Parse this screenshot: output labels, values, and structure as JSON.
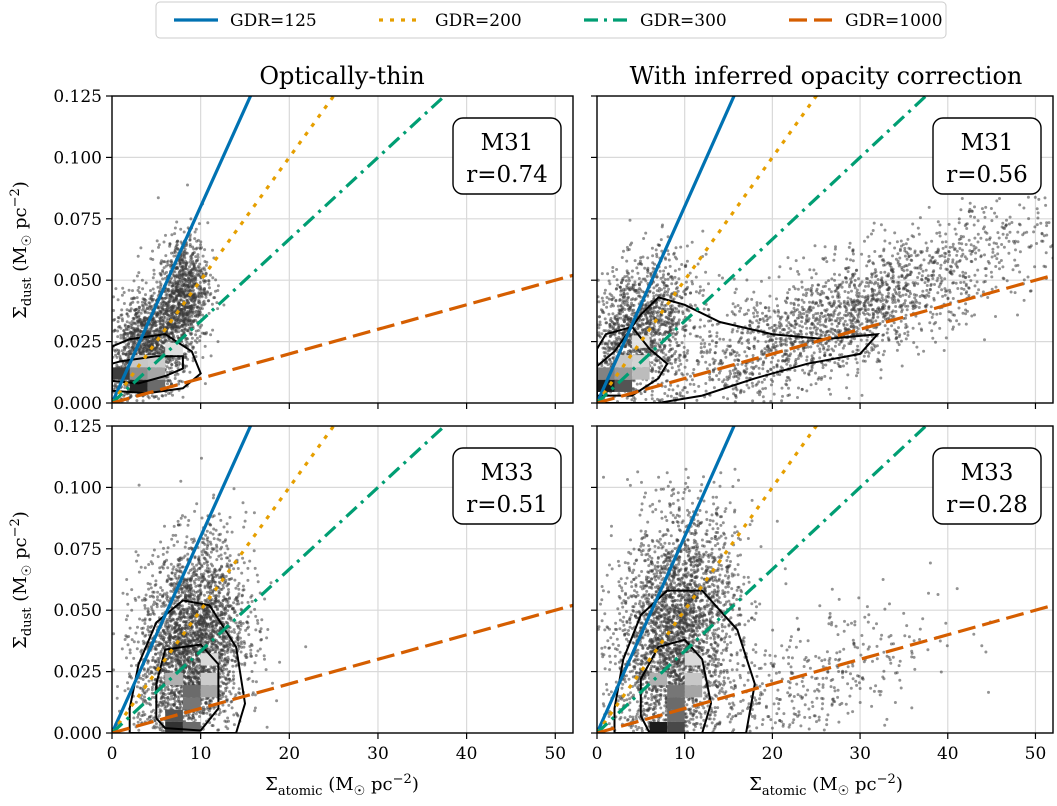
{
  "legend": [
    {
      "label": "GDR=125",
      "gdr": 125,
      "color": "#0072b2",
      "dash": "solid"
    },
    {
      "label": "GDR=200",
      "gdr": 200,
      "color": "#e69f00",
      "dash": "dotted"
    },
    {
      "label": "GDR=300",
      "gdr": 300,
      "color": "#009e73",
      "dash": "dashdot"
    },
    {
      "label": "GDR=1000",
      "gdr": 1000,
      "color": "#d55e00",
      "dash": "dashed"
    }
  ],
  "columns": [
    {
      "title": "Optically-thin"
    },
    {
      "title": "With inferred opacity correction"
    }
  ],
  "chart_data": {
    "type": "scatter",
    "title": "",
    "xlabel_base": "Σ",
    "xlabel_sub": "atomic",
    "xlabel_unit_pre": " (M",
    "xlabel_unit_sun": "☉",
    "xlabel_unit_post": " pc",
    "xlabel_unit_sup": "−2",
    "xlabel_close": ")",
    "ylabel_base": "Σ",
    "ylabel_sub": "dust",
    "ylabel_unit_pre": " (M",
    "ylabel_unit_sun": "☉",
    "ylabel_unit_post": " pc",
    "ylabel_unit_sup": "−2",
    "ylabel_close": ")",
    "xlim": [
      0,
      52
    ],
    "ylim": [
      0,
      0.125
    ],
    "xticks": [
      "0",
      "10",
      "20",
      "30",
      "40",
      "50"
    ],
    "xtick_values": [
      0,
      10,
      20,
      30,
      40,
      50
    ],
    "yticks": [
      "0.000",
      "0.025",
      "0.050",
      "0.075",
      "0.100",
      "0.125"
    ],
    "ytick_values": [
      0,
      0.025,
      0.05,
      0.075,
      0.1,
      0.125
    ],
    "grid": true,
    "legend_position": "top-center",
    "reference_lines": "y = x / GDR",
    "panels": [
      {
        "galaxy": "M31",
        "r_label": "r=0.74",
        "correction": "Optically-thin",
        "cloud": [
          {
            "x": 4,
            "y": 0.022,
            "sx": 2.4,
            "sy": 0.012,
            "n": 1500
          },
          {
            "x": 8,
            "y": 0.045,
            "sx": 1.4,
            "sy": 0.012,
            "n": 900
          }
        ],
        "heat": [
          {
            "x": 3,
            "y": 0.007,
            "v": 0.9
          },
          {
            "x": 5,
            "y": 0.007,
            "v": 0.6
          },
          {
            "x": 1,
            "y": 0.012,
            "v": 0.8
          },
          {
            "x": 3,
            "y": 0.012,
            "v": 0.45
          },
          {
            "x": 5,
            "y": 0.012,
            "v": 0.35
          },
          {
            "x": 3,
            "y": 0.017,
            "v": 0.2
          },
          {
            "x": 5,
            "y": 0.017,
            "v": 0.18
          },
          {
            "x": 7,
            "y": 0.022,
            "v": 0.1
          }
        ],
        "contours": [
          [
            [
              0,
              0.009
            ],
            [
              3,
              0.008
            ],
            [
              6,
              0.011
            ],
            [
              8,
              0.014
            ],
            [
              8,
              0.019
            ],
            [
              5,
              0.019
            ],
            [
              1,
              0.017
            ],
            [
              0,
              0.016
            ]
          ],
          [
            [
              0,
              0.005
            ],
            [
              4,
              0.004
            ],
            [
              8,
              0.006
            ],
            [
              10,
              0.012
            ],
            [
              9,
              0.021
            ],
            [
              6,
              0.028
            ],
            [
              2,
              0.026
            ],
            [
              0,
              0.023
            ]
          ]
        ]
      },
      {
        "galaxy": "M31",
        "r_label": "r=0.56",
        "correction": "With inferred opacity correction",
        "cloud": [
          {
            "x": 5,
            "y": 0.03,
            "sx": 3,
            "sy": 0.014,
            "n": 1400
          },
          {
            "x": 28,
            "y": 0.035,
            "sx": 11,
            "sy": 0.012,
            "n": 2100
          }
        ],
        "heat": [
          {
            "x": 1,
            "y": 0.007,
            "v": 0.95
          },
          {
            "x": 3,
            "y": 0.007,
            "v": 0.7
          },
          {
            "x": 1,
            "y": 0.012,
            "v": 0.5
          },
          {
            "x": 3,
            "y": 0.012,
            "v": 0.4
          },
          {
            "x": 5,
            "y": 0.012,
            "v": 0.25
          },
          {
            "x": 3,
            "y": 0.017,
            "v": 0.2
          },
          {
            "x": 5,
            "y": 0.017,
            "v": 0.15
          },
          {
            "x": 5,
            "y": 0.025,
            "v": 0.08
          }
        ],
        "contours": [
          [
            [
              0,
              0.003
            ],
            [
              4,
              0.003
            ],
            [
              7,
              0.01
            ],
            [
              8,
              0.016
            ],
            [
              6,
              0.022
            ],
            [
              4,
              0.031
            ],
            [
              1,
              0.028
            ],
            [
              0,
              0.022
            ]
          ],
          [
            [
              0,
              0.015
            ],
            [
              2,
              0.021
            ],
            [
              5,
              0.036
            ],
            [
              7,
              0.043
            ],
            [
              10,
              0.04
            ],
            [
              14,
              0.033
            ],
            [
              20,
              0.028
            ],
            [
              26,
              0.026
            ],
            [
              32,
              0.028
            ],
            [
              30,
              0.02
            ],
            [
              24,
              0.016
            ],
            [
              18,
              0.01
            ],
            [
              12,
              0.003
            ],
            [
              7,
              0.0
            ],
            [
              0,
              0.0
            ]
          ]
        ]
      },
      {
        "galaxy": "M33",
        "r_label": "r=0.51",
        "correction": "Optically-thin",
        "cloud": [
          {
            "x": 9,
            "y": 0.035,
            "sx": 3,
            "sy": 0.021,
            "n": 3000
          }
        ],
        "heat": [
          {
            "x": 7,
            "y": 0.002,
            "v": 0.85
          },
          {
            "x": 9,
            "y": 0.002,
            "v": 0.6
          },
          {
            "x": 7,
            "y": 0.007,
            "v": 0.7
          },
          {
            "x": 9,
            "y": 0.012,
            "v": 0.55
          },
          {
            "x": 9,
            "y": 0.017,
            "v": 0.6
          },
          {
            "x": 11,
            "y": 0.017,
            "v": 0.35
          },
          {
            "x": 7,
            "y": 0.022,
            "v": 0.3
          },
          {
            "x": 11,
            "y": 0.022,
            "v": 0.18
          },
          {
            "x": 11,
            "y": 0.03,
            "v": 0.12
          }
        ],
        "contours": [
          [
            [
              6,
              0.002
            ],
            [
              10,
              0.001
            ],
            [
              12,
              0.01
            ],
            [
              12,
              0.028
            ],
            [
              10,
              0.036
            ],
            [
              6,
              0.034
            ],
            [
              5,
              0.02
            ],
            [
              5,
              0.006
            ]
          ],
          [
            [
              2,
              0.0
            ],
            [
              14,
              0.0
            ],
            [
              15,
              0.012
            ],
            [
              14,
              0.035
            ],
            [
              11,
              0.052
            ],
            [
              8,
              0.054
            ],
            [
              5,
              0.045
            ],
            [
              3,
              0.028
            ],
            [
              2,
              0.01
            ]
          ]
        ]
      },
      {
        "galaxy": "M33",
        "r_label": "r=0.28",
        "correction": "With inferred opacity correction",
        "cloud": [
          {
            "x": 9,
            "y": 0.04,
            "sx": 3.5,
            "sy": 0.024,
            "n": 3000
          },
          {
            "x": 22,
            "y": 0.015,
            "sx": 8,
            "sy": 0.015,
            "n": 500
          }
        ],
        "heat": [
          {
            "x": 7,
            "y": 0.002,
            "v": 0.95
          },
          {
            "x": 9,
            "y": 0.002,
            "v": 0.75
          },
          {
            "x": 9,
            "y": 0.007,
            "v": 0.6
          },
          {
            "x": 9,
            "y": 0.012,
            "v": 0.6
          },
          {
            "x": 9,
            "y": 0.017,
            "v": 0.55
          },
          {
            "x": 11,
            "y": 0.017,
            "v": 0.35
          },
          {
            "x": 7,
            "y": 0.022,
            "v": 0.3
          },
          {
            "x": 11,
            "y": 0.022,
            "v": 0.2
          },
          {
            "x": 11,
            "y": 0.03,
            "v": 0.12
          }
        ],
        "contours": [
          [
            [
              6,
              0.0
            ],
            [
              12,
              0.0
            ],
            [
              13,
              0.012
            ],
            [
              12,
              0.03
            ],
            [
              10,
              0.038
            ],
            [
              7,
              0.035
            ],
            [
              5,
              0.022
            ],
            [
              5,
              0.007
            ]
          ],
          [
            [
              2,
              0.0
            ],
            [
              17,
              0.0
            ],
            [
              18,
              0.02
            ],
            [
              16,
              0.042
            ],
            [
              12,
              0.058
            ],
            [
              8,
              0.058
            ],
            [
              5,
              0.048
            ],
            [
              3,
              0.03
            ],
            [
              2,
              0.01
            ]
          ]
        ]
      }
    ]
  }
}
